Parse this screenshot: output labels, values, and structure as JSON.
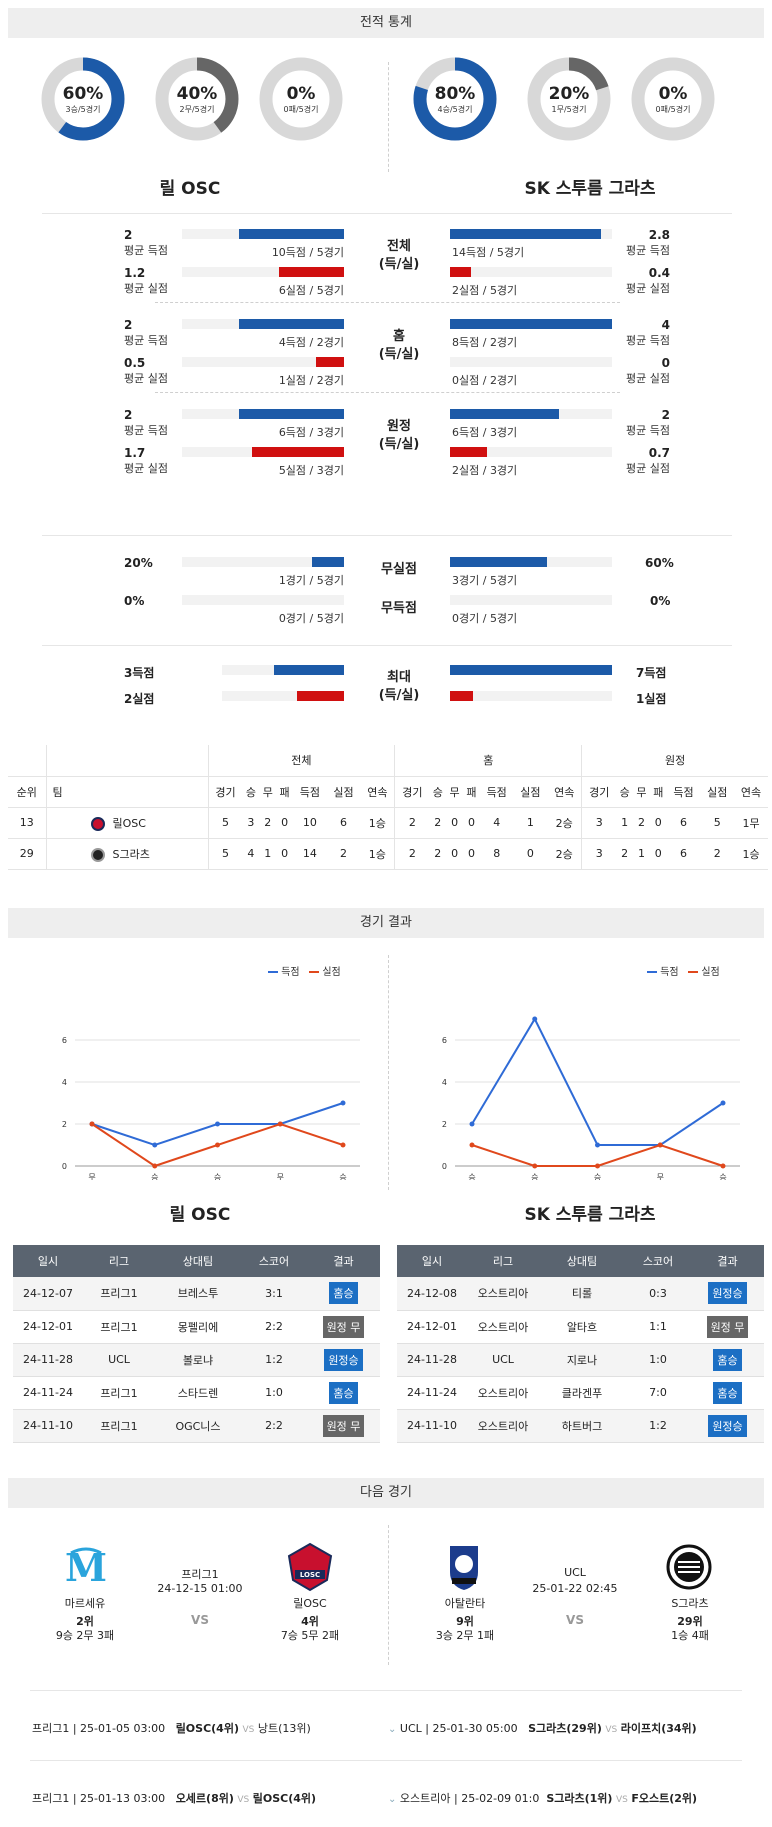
{
  "sections": {
    "stats": "전적 통계",
    "results": "경기 결과",
    "next": "다음 경기"
  },
  "teams": {
    "left": "릴 OSC",
    "right": "SK 스투름 그라츠"
  },
  "donuts": {
    "left": [
      {
        "pct": "60%",
        "sub": "3승/5경기",
        "value": 0.6
      },
      {
        "pct": "40%",
        "sub": "2무/5경기",
        "value": 0.4
      },
      {
        "pct": "0%",
        "sub": "0패/5경기",
        "value": 0
      }
    ],
    "right": [
      {
        "pct": "80%",
        "sub": "4승/5경기",
        "value": 0.8
      },
      {
        "pct": "20%",
        "sub": "1무/5경기",
        "value": 0.2
      },
      {
        "pct": "0%",
        "sub": "0패/5경기",
        "value": 0
      }
    ],
    "colors": {
      "win": "#1c5aa8",
      "draw": "#666666",
      "track": "#d8d8d8"
    }
  },
  "stat_groups": [
    {
      "center": [
        "전체",
        "(득/실)"
      ],
      "left": [
        {
          "num": "2",
          "lbl": "평균 득점",
          "cap": "10득점 / 5경기",
          "frac": 0.65,
          "color": "blue"
        },
        {
          "num": "1.2",
          "lbl": "평균 실점",
          "cap": "6실점 / 5경기",
          "frac": 0.4,
          "color": "red"
        }
      ],
      "right": [
        {
          "num": "2.8",
          "lbl": "평균 득점",
          "cap": "14득점 / 5경기",
          "frac": 0.93,
          "color": "blue"
        },
        {
          "num": "0.4",
          "lbl": "평균 실점",
          "cap": "2실점 / 5경기",
          "frac": 0.13,
          "color": "red"
        }
      ]
    },
    {
      "center": [
        "홈",
        "(득/실)"
      ],
      "left": [
        {
          "num": "2",
          "lbl": "평균 득점",
          "cap": "4득점 / 2경기",
          "frac": 0.65,
          "color": "blue"
        },
        {
          "num": "0.5",
          "lbl": "평균 실점",
          "cap": "1실점 / 2경기",
          "frac": 0.17,
          "color": "red"
        }
      ],
      "right": [
        {
          "num": "4",
          "lbl": "평균 득점",
          "cap": "8득점 / 2경기",
          "frac": 1.0,
          "color": "blue"
        },
        {
          "num": "0",
          "lbl": "평균 실점",
          "cap": "0실점 / 2경기",
          "frac": 0,
          "color": "red"
        }
      ]
    },
    {
      "center": [
        "원정",
        "(득/실)"
      ],
      "left": [
        {
          "num": "2",
          "lbl": "평균 득점",
          "cap": "6득점 / 3경기",
          "frac": 0.65,
          "color": "blue"
        },
        {
          "num": "1.7",
          "lbl": "평균 실점",
          "cap": "5실점 / 3경기",
          "frac": 0.57,
          "color": "red"
        }
      ],
      "right": [
        {
          "num": "2",
          "lbl": "평균 득점",
          "cap": "6득점 / 3경기",
          "frac": 0.67,
          "color": "blue"
        },
        {
          "num": "0.7",
          "lbl": "평균 실점",
          "cap": "2실점 / 3경기",
          "frac": 0.23,
          "color": "red"
        }
      ]
    }
  ],
  "cleansheet": {
    "row1": {
      "center": "무실점",
      "left_num": "20%",
      "left_cap": "1경기 / 5경기",
      "left_frac": 0.2,
      "right_num": "60%",
      "right_cap": "3경기 / 5경기",
      "right_frac": 0.6
    },
    "row2": {
      "center": "무득점",
      "left_num": "0%",
      "left_cap": "0경기 / 5경기",
      "left_frac": 0,
      "right_num": "0%",
      "right_cap": "0경기 / 5경기",
      "right_frac": 0
    }
  },
  "maxrow": {
    "center": [
      "최대",
      "(득/실)"
    ],
    "left_score": "3득점",
    "left_conc": "2실점",
    "left_score_frac": 0.43,
    "left_conc_frac": 0.29,
    "right_score": "7득점",
    "right_conc": "1실점",
    "right_score_frac": 1.0,
    "right_conc_frac": 0.14
  },
  "ranking": {
    "groups": [
      "전체",
      "홈",
      "원정"
    ],
    "headers": [
      "순위",
      "팀"
    ],
    "sub": [
      "경기",
      "승",
      "무",
      "패",
      "득점",
      "실점",
      "연속"
    ],
    "rows": [
      {
        "rank": "13",
        "team": "릴OSC",
        "cells": [
          "5",
          "3",
          "2",
          "0",
          "10",
          "6",
          "1승",
          "2",
          "2",
          "0",
          "0",
          "4",
          "1",
          "2승",
          "3",
          "1",
          "2",
          "0",
          "6",
          "5",
          "1무"
        ]
      },
      {
        "rank": "29",
        "team": "S그라츠",
        "cells": [
          "5",
          "4",
          "1",
          "0",
          "14",
          "2",
          "1승",
          "2",
          "2",
          "0",
          "0",
          "8",
          "0",
          "2승",
          "3",
          "2",
          "1",
          "0",
          "6",
          "2",
          "1승"
        ]
      }
    ]
  },
  "charts": {
    "legend": {
      "score": "득점",
      "conceded": "실점"
    },
    "chart_data": [
      {
        "type": "line",
        "categories": [
          "무",
          "승",
          "승",
          "무",
          "승"
        ],
        "ylim": [
          0,
          7
        ],
        "yticks": [
          0,
          2,
          4,
          6
        ],
        "series": [
          {
            "name": "득점",
            "values": [
              2,
              1,
              2,
              2,
              3
            ],
            "color": "#2f6bd6"
          },
          {
            "name": "실점",
            "values": [
              2,
              0,
              1,
              2,
              1
            ],
            "color": "#e0481c"
          }
        ]
      },
      {
        "type": "line",
        "categories": [
          "승",
          "승",
          "승",
          "무",
          "승"
        ],
        "ylim": [
          0,
          7
        ],
        "yticks": [
          0,
          2,
          4,
          6
        ],
        "series": [
          {
            "name": "득점",
            "values": [
              2,
              7,
              1,
              1,
              3
            ],
            "color": "#2f6bd6"
          },
          {
            "name": "실점",
            "values": [
              1,
              0,
              0,
              1,
              0
            ],
            "color": "#e0481c"
          }
        ]
      }
    ]
  },
  "results": {
    "headers": [
      "일시",
      "리그",
      "상대팀",
      "스코어",
      "결과"
    ],
    "left": [
      [
        "24-12-07",
        "프리그1",
        "브레스투",
        "3:1",
        "홈승",
        "blue"
      ],
      [
        "24-12-01",
        "프리그1",
        "몽펠리에",
        "2:2",
        "원정 무",
        "gray"
      ],
      [
        "24-11-28",
        "UCL",
        "볼로냐",
        "1:2",
        "원정승",
        "blue"
      ],
      [
        "24-11-24",
        "프리그1",
        "스타드렌",
        "1:0",
        "홈승",
        "blue"
      ],
      [
        "24-11-10",
        "프리그1",
        "OGC니스",
        "2:2",
        "원정 무",
        "gray"
      ]
    ],
    "right": [
      [
        "24-12-08",
        "오스트리아",
        "티롤",
        "0:3",
        "원정승",
        "blue"
      ],
      [
        "24-12-01",
        "오스트리아",
        "알타흐",
        "1:1",
        "원정 무",
        "gray"
      ],
      [
        "24-11-28",
        "UCL",
        "지로나",
        "1:0",
        "홈승",
        "blue"
      ],
      [
        "24-11-24",
        "오스트리아",
        "클라겐푸",
        "7:0",
        "홈승",
        "blue"
      ],
      [
        "24-11-10",
        "오스트리아",
        "하트버그",
        "1:2",
        "원정승",
        "blue"
      ]
    ]
  },
  "next": {
    "left": {
      "home": "마르세유",
      "home_rank": "2위",
      "home_rec": "9승 2무 3패",
      "league": "프리그1",
      "date": "24-12-15 01:00",
      "vs": "VS",
      "away": "릴OSC",
      "away_rank": "4위",
      "away_rec": "7승 5무 2패"
    },
    "right": {
      "home": "아탈란타",
      "home_rank": "9위",
      "home_rec": "3승 2무 1패",
      "league": "UCL",
      "date": "25-01-22 02:45",
      "vs": "VS",
      "away": "S그라츠",
      "away_rank": "29위",
      "away_rec": "1승 4패"
    }
  },
  "upcoming": [
    {
      "l_info": "프리그1 | 25-01-05 03:00",
      "l_home": "릴OSC(4위)",
      "l_vs": "VS",
      "l_away": "낭트(13위)",
      "r_info": "UCL | 25-01-30 05:00",
      "r_home": "S그라츠(29위)",
      "r_vs": "VS",
      "r_away": "라이프치(34위)"
    },
    {
      "l_info": "프리그1 | 25-01-13 03:00",
      "l_home": "오세르(8위)",
      "l_vs": "VS",
      "l_away": "릴OSC(4위)",
      "r_info": "오스트리아 | 25-02-09 01:0",
      "r_home": "S그라츠(1위)",
      "r_vs": "VS",
      "r_away": "F오스트(2위)"
    }
  ]
}
